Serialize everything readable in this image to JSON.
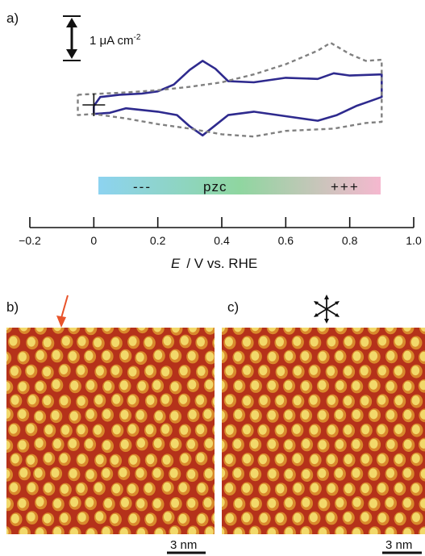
{
  "panels": {
    "a": "a)",
    "b": "b)",
    "c": "c)"
  },
  "scale_bar": {
    "value": 1,
    "label": "1 μA cm",
    "exponent": "-2"
  },
  "charge_bar": {
    "left": "---",
    "middle": "pzc",
    "right": "+++",
    "colors": [
      "#8dd3f0",
      "#8fd6a0",
      "#f5b8cf"
    ],
    "range": [
      0.02,
      0.9
    ]
  },
  "axis": {
    "label_e": "E",
    "label_rest": "/ V vs. RHE",
    "ticks": [
      -0.2,
      0,
      0.2,
      0.4,
      0.6,
      0.8,
      1.0
    ],
    "tick_labels": [
      "-0.2",
      "0",
      "0.2",
      "0.4",
      "0.6",
      "0.8",
      "1.0"
    ],
    "range": [
      -0.2,
      1.0
    ]
  },
  "stm": {
    "scale_b": "3 nm",
    "scale_c": "3 nm",
    "arrow_color": "#e8532a",
    "tip_color": "#f2d86a",
    "bg_color": "#b5321a"
  },
  "chart_data": {
    "type": "line",
    "xlabel": "E / V vs. RHE",
    "ylabel": "",
    "xlim": [
      -0.2,
      1.0
    ],
    "series": [
      {
        "style": "solid",
        "color": "#2e2a8e",
        "points": [
          [
            0.0,
            -0.05
          ],
          [
            0.02,
            0.35
          ],
          [
            0.08,
            0.45
          ],
          [
            0.15,
            0.5
          ],
          [
            0.2,
            0.6
          ],
          [
            0.25,
            0.9
          ],
          [
            0.3,
            1.55
          ],
          [
            0.34,
            1.95
          ],
          [
            0.38,
            1.6
          ],
          [
            0.42,
            1.05
          ],
          [
            0.5,
            1.0
          ],
          [
            0.6,
            1.2
          ],
          [
            0.7,
            1.15
          ],
          [
            0.75,
            1.4
          ],
          [
            0.8,
            1.3
          ],
          [
            0.9,
            1.35
          ],
          [
            0.9,
            0.35
          ],
          [
            0.86,
            0.15
          ],
          [
            0.82,
            -0.05
          ],
          [
            0.76,
            -0.45
          ],
          [
            0.7,
            -0.7
          ],
          [
            0.6,
            -0.5
          ],
          [
            0.5,
            -0.3
          ],
          [
            0.42,
            -0.45
          ],
          [
            0.38,
            -0.9
          ],
          [
            0.34,
            -1.35
          ],
          [
            0.3,
            -0.95
          ],
          [
            0.26,
            -0.45
          ],
          [
            0.2,
            -0.3
          ],
          [
            0.1,
            -0.15
          ],
          [
            0.05,
            -0.35
          ],
          [
            0.0,
            -0.4
          ],
          [
            0.0,
            -0.05
          ]
        ]
      },
      {
        "style": "dashed",
        "color": "#808080",
        "points": [
          [
            -0.05,
            0.45
          ],
          [
            0.1,
            0.55
          ],
          [
            0.2,
            0.65
          ],
          [
            0.3,
            0.8
          ],
          [
            0.4,
            1.0
          ],
          [
            0.5,
            1.35
          ],
          [
            0.6,
            1.8
          ],
          [
            0.7,
            2.4
          ],
          [
            0.74,
            2.75
          ],
          [
            0.8,
            2.25
          ],
          [
            0.85,
            1.95
          ],
          [
            0.9,
            2.0
          ],
          [
            0.9,
            -0.75
          ],
          [
            0.85,
            -0.8
          ],
          [
            0.75,
            -1.05
          ],
          [
            0.6,
            -1.15
          ],
          [
            0.5,
            -1.4
          ],
          [
            0.4,
            -1.3
          ],
          [
            0.3,
            -1.05
          ],
          [
            0.2,
            -0.85
          ],
          [
            0.1,
            -0.6
          ],
          [
            0.0,
            -0.4
          ],
          [
            -0.05,
            -0.45
          ],
          [
            -0.05,
            0.45
          ]
        ]
      }
    ],
    "origin": [
      0.0,
      0.0
    ]
  }
}
